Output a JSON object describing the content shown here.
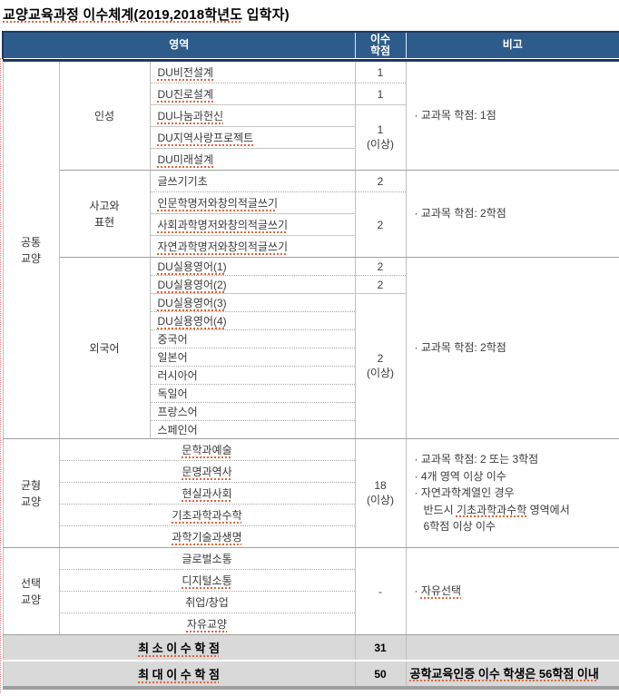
{
  "title": {
    "part1": "교양교육과정",
    "part2": " 이수체계(2019,2018학년도",
    "part3": " 입학자)"
  },
  "header": {
    "area": "영역",
    "credits_line1": "이수",
    "credits_line2": "학점",
    "remark": "비고"
  },
  "areas": {
    "common": {
      "label": [
        "공통",
        "교양"
      ],
      "personality": {
        "label": "인성",
        "courses": [
          "DU비전설계",
          "DU진로설계",
          "DU나눔과헌신",
          "DU지역사랑프로젝트",
          "DU미래설계"
        ],
        "credits": [
          "1",
          "1"
        ],
        "credit_merged": [
          "1",
          "(이상)"
        ],
        "remark": "· 교과목 학점: 1점"
      },
      "thinking": {
        "label": [
          "사고와",
          "표현"
        ],
        "courses": [
          "글쓰기기초",
          "인문학명저와창의적글쓰기",
          "사회과학명저와창의적글쓰기",
          "자연과학명저와창의적글쓰기"
        ],
        "credits": [
          "2"
        ],
        "credit_merged": [
          "2"
        ],
        "remark": "· 교과목 학점: 2학점"
      },
      "foreign": {
        "label": "외국어",
        "courses": [
          "DU실용영어(1)",
          "DU실용영어(2)",
          "DU실용영어(3)",
          "DU실용영어(4)",
          "중국어",
          "일본어",
          "러시아어",
          "독일어",
          "프랑스어",
          "스페인어"
        ],
        "credits": [
          "2",
          "2"
        ],
        "credit_merged": [
          "2",
          "(이상)"
        ],
        "remark": "· 교과목 학점: 2학점"
      }
    },
    "balance": {
      "label": [
        "균형",
        "교양"
      ],
      "courses": [
        "문학과예술",
        "문명과역사",
        "현실과사회",
        "기초과학과수학",
        "과학기술과생명"
      ],
      "credit_merged": [
        "18",
        "(이상)"
      ],
      "remark_lines": [
        "· 교과목 학점: 2 또는 3학점",
        "· 4개 영역 이상 이수",
        "· 자연과학계열인 경우"
      ],
      "remark_line4": [
        "반드시 ",
        "기초과학과수학",
        " 영역에서"
      ],
      "remark_line5": "6학점 이상 이수"
    },
    "elective": {
      "label": [
        "선택",
        "교양"
      ],
      "courses": [
        "글로벌소통",
        "디지털소통",
        "취업/창업",
        "자유교양"
      ],
      "credit_merged": "-",
      "remark": "· 자유선택"
    }
  },
  "footer": {
    "min_label": "최 소 이 수 학 점",
    "min_credit": "31",
    "max_label": "최 대 이 수 학 점",
    "max_credit": "50",
    "max_remark": "공학교육인증 이수 학생은 56학점 이내"
  }
}
